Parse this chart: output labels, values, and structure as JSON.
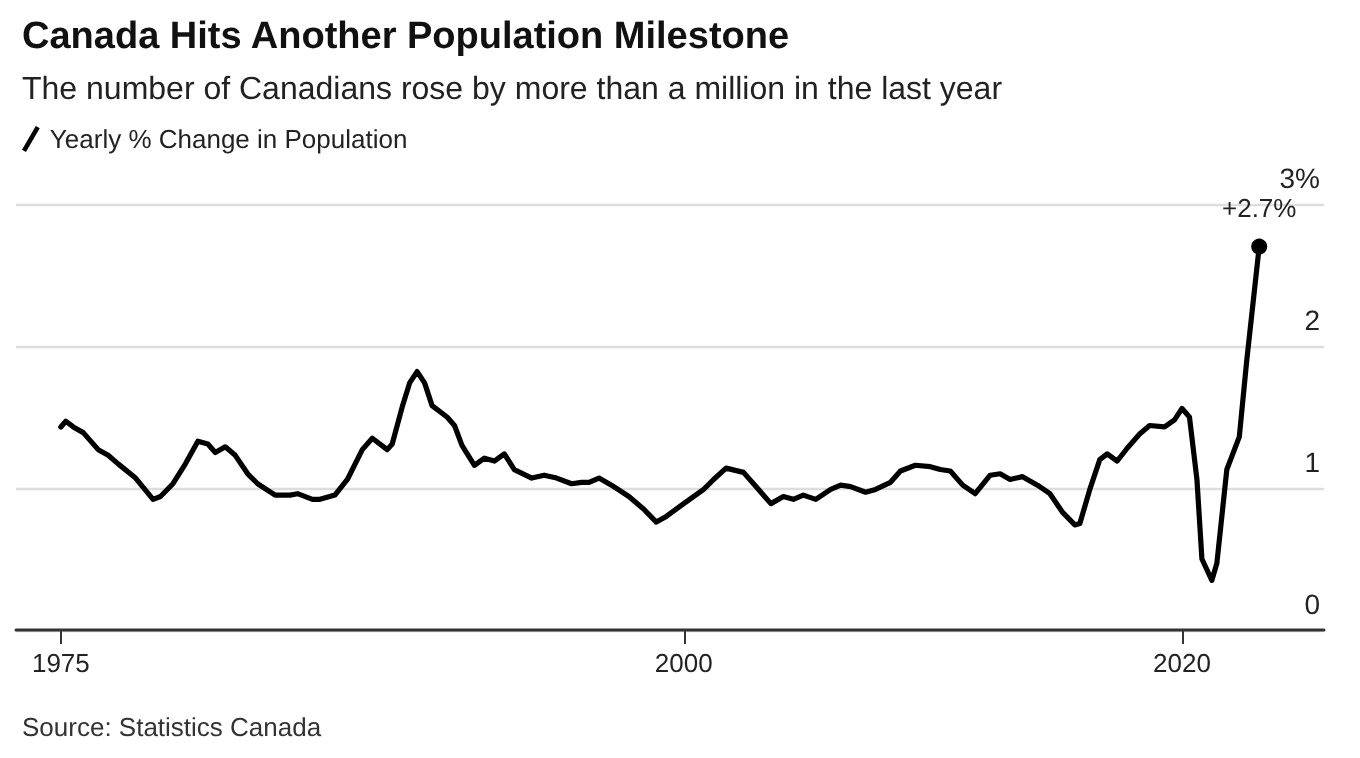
{
  "chart_data": {
    "type": "line",
    "title": "Canada Hits Another Population Milestone",
    "subtitle": "The number of Canadians rose by more than a million in the last year",
    "series": [
      {
        "name": "Yearly % Change in Population",
        "color": "#000000",
        "x": [
          1975.0,
          1975.2,
          1975.5,
          1975.9,
          1976.5,
          1976.9,
          1977.3,
          1978.0,
          1978.7,
          1979.0,
          1979.5,
          1980.0,
          1980.5,
          1980.9,
          1981.2,
          1981.6,
          1982.0,
          1982.5,
          1982.9,
          1983.6,
          1984.2,
          1984.5,
          1985.1,
          1985.4,
          1986.0,
          1986.5,
          1987.1,
          1987.5,
          1988.1,
          1988.3,
          1988.7,
          1989.0,
          1989.3,
          1989.6,
          1989.9,
          1990.5,
          1990.8,
          1991.1,
          1991.6,
          1992.0,
          1992.4,
          1992.8,
          1993.2,
          1993.9,
          1994.4,
          1994.9,
          1995.5,
          1995.9,
          1996.2,
          1996.6,
          1997.1,
          1997.8,
          1998.4,
          1998.9,
          1999.3,
          2000.0,
          2000.8,
          2001.2,
          2001.7,
          2002.4,
          2002.9,
          2003.5,
          2004.0,
          2004.4,
          2004.8,
          2005.3,
          2005.9,
          2006.3,
          2006.7,
          2007.3,
          2007.7,
          2008.3,
          2008.7,
          2009.3,
          2009.9,
          2010.3,
          2010.7,
          2011.2,
          2011.7,
          2012.3,
          2012.7,
          2013.1,
          2013.6,
          2014.2,
          2014.7,
          2015.2,
          2015.7,
          2015.9,
          2016.3,
          2016.7,
          2017.0,
          2017.4,
          2017.8,
          2018.3,
          2018.7,
          2019.3,
          2019.7,
          2020.0,
          2020.3,
          2020.6,
          2020.8,
          2021.2,
          2021.4,
          2021.8,
          2022.3,
          2022.6,
          2023.1
        ],
        "values": [
          1.43,
          1.47,
          1.43,
          1.39,
          1.27,
          1.23,
          1.17,
          1.07,
          0.92,
          0.94,
          1.03,
          1.17,
          1.33,
          1.31,
          1.25,
          1.29,
          1.23,
          1.1,
          1.03,
          0.95,
          0.95,
          0.96,
          0.92,
          0.92,
          0.95,
          1.06,
          1.27,
          1.35,
          1.27,
          1.31,
          1.57,
          1.74,
          1.82,
          1.74,
          1.58,
          1.5,
          1.44,
          1.3,
          1.16,
          1.21,
          1.19,
          1.24,
          1.13,
          1.07,
          1.09,
          1.07,
          1.03,
          1.04,
          1.04,
          1.07,
          1.02,
          0.94,
          0.85,
          0.76,
          0.8,
          0.89,
          0.99,
          1.06,
          1.14,
          1.11,
          1.01,
          0.89,
          0.94,
          0.92,
          0.95,
          0.92,
          0.99,
          1.02,
          1.01,
          0.97,
          0.99,
          1.04,
          1.12,
          1.16,
          1.15,
          1.13,
          1.12,
          1.02,
          0.96,
          1.09,
          1.1,
          1.06,
          1.08,
          1.02,
          0.96,
          0.83,
          0.74,
          0.75,
          0.99,
          1.2,
          1.24,
          1.19,
          1.28,
          1.38,
          1.44,
          1.43,
          1.48,
          1.56,
          1.5,
          1.06,
          0.5,
          0.35,
          0.47,
          1.13,
          1.36,
          1.9,
          2.7
        ]
      }
    ],
    "xlim": [
      1973.2,
      2025.7
    ],
    "xticks": [
      1975,
      2000,
      2020
    ],
    "ylim": [
      0,
      3
    ],
    "yticks": [
      0,
      1,
      2,
      {
        "value": 3,
        "label": "3%"
      }
    ],
    "grid": "y",
    "legend": "top left",
    "marker": "none",
    "line_style": "solid",
    "annotations": [
      {
        "text": "+2.7%",
        "x": 2023.1,
        "y": 2.7
      },
      "Source: Statistics Canada"
    ]
  }
}
